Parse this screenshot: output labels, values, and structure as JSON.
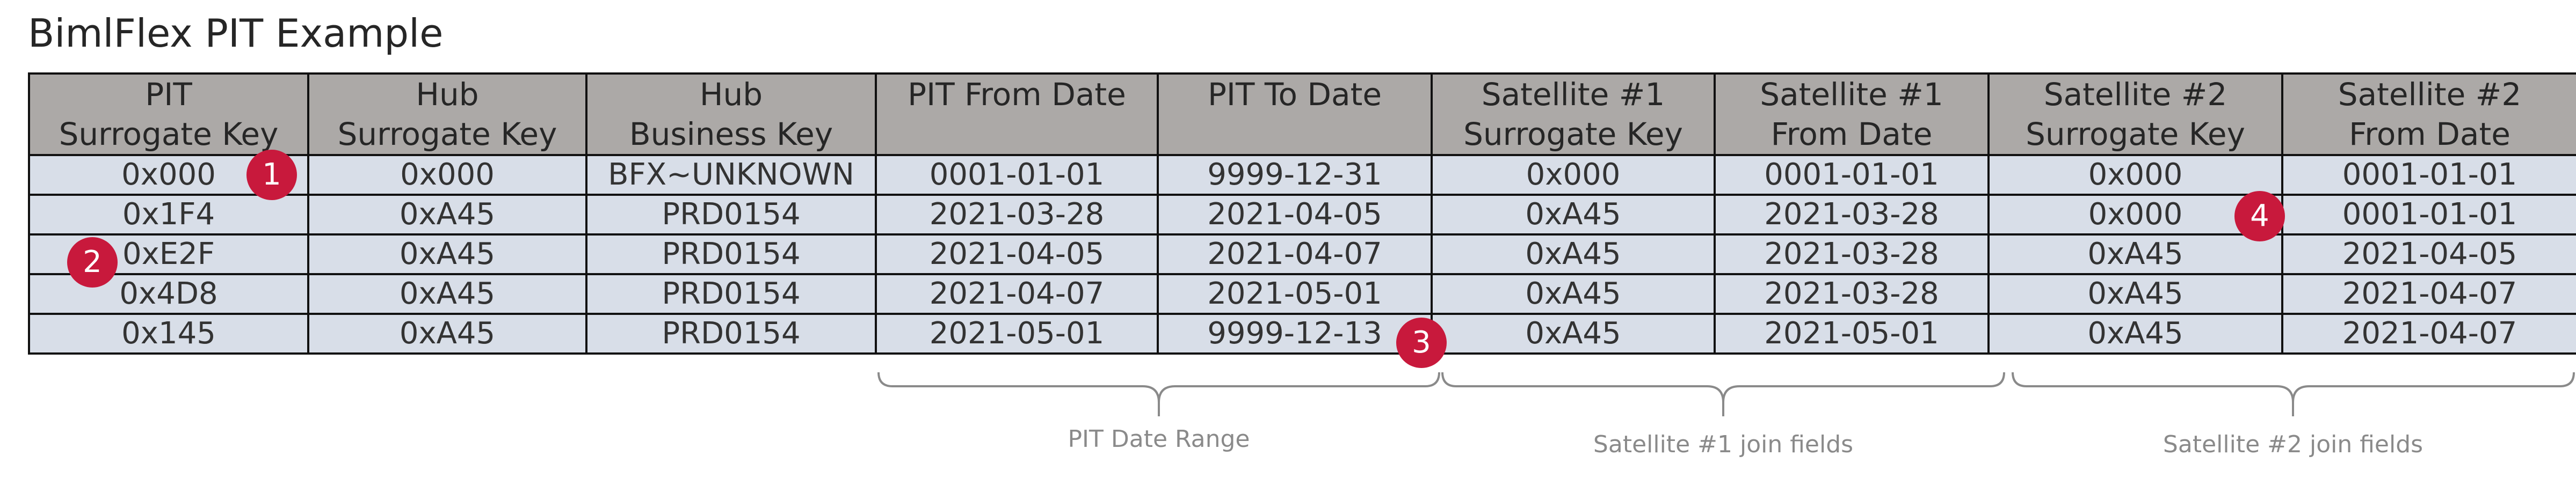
{
  "title": "BimlFlex PIT Example",
  "columns": [
    [
      "PIT",
      "Surrogate Key"
    ],
    [
      "Hub",
      "Surrogate Key"
    ],
    [
      "Hub",
      "Business Key"
    ],
    [
      "PIT From Date",
      ""
    ],
    [
      "PIT To Date",
      ""
    ],
    [
      "Satellite #1",
      "Surrogate Key"
    ],
    [
      "Satellite #1",
      "From Date"
    ],
    [
      "Satellite #2",
      "Surrogate Key"
    ],
    [
      "Satellite #2",
      "From Date"
    ]
  ],
  "rows": [
    [
      "0x000",
      "0x000",
      "BFX~UNKNOWN",
      "0001-01-01",
      "9999-12-31",
      "0x000",
      "0001-01-01",
      "0x000",
      "0001-01-01"
    ],
    [
      "0x1F4",
      "0xA45",
      "PRD0154",
      "2021-03-28",
      "2021-04-05",
      "0xA45",
      "2021-03-28",
      "0x000",
      "0001-01-01"
    ],
    [
      "0xE2F",
      "0xA45",
      "PRD0154",
      "2021-04-05",
      "2021-04-07",
      "0xA45",
      "2021-03-28",
      "0xA45",
      "2021-04-05"
    ],
    [
      "0x4D8",
      "0xA45",
      "PRD0154",
      "2021-04-07",
      "2021-05-01",
      "0xA45",
      "2021-03-28",
      "0xA45",
      "2021-04-07"
    ],
    [
      "0x145",
      "0xA45",
      "PRD0154",
      "2021-05-01",
      "9999-12-13",
      "0xA45",
      "2021-05-01",
      "0xA45",
      "2021-04-07"
    ]
  ],
  "markers": [
    "1",
    "2",
    "3",
    "4"
  ],
  "brackets": [
    "PIT Date Range",
    "Satellite #1 join fields",
    "Satellite #2 join fields"
  ],
  "colors": {
    "header_bg": "#aca9a7",
    "row_bg": "#d8dee8",
    "marker": "#c8193c",
    "grid": "#111111",
    "bracket": "#8a8a8a"
  }
}
